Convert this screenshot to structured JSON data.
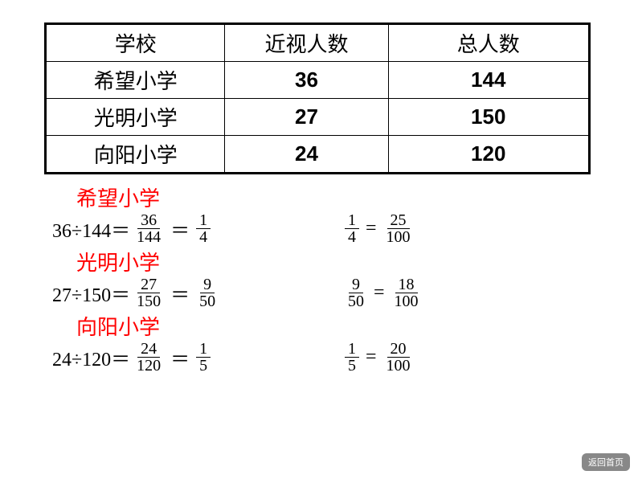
{
  "table": {
    "headers": [
      "学校",
      "近视人数",
      "总人数"
    ],
    "rows": [
      [
        "希望小学",
        "36",
        "144"
      ],
      [
        "光明小学",
        "27",
        "150"
      ],
      [
        "向阳小学",
        "24",
        "120"
      ]
    ]
  },
  "calcs": [
    {
      "title": "希望小学",
      "lhs": "36÷144＝",
      "f1": {
        "n": "36",
        "d": "144"
      },
      "eq1": "＝",
      "f2": {
        "n": "1",
        "d": "4"
      },
      "rf1": {
        "n": "1",
        "d": "4"
      },
      "req": "=",
      "rf2": {
        "n": "25",
        "d": "100"
      }
    },
    {
      "title": "光明小学",
      "lhs": "27÷150＝",
      "f1": {
        "n": "27",
        "d": "150"
      },
      "eq1": "＝",
      "f2": {
        "n": "9",
        "d": "50"
      },
      "rf1": {
        "n": "9",
        "d": "50"
      },
      "req": "=",
      "rf2": {
        "n": "18",
        "d": "100"
      }
    },
    {
      "title": "向阳小学",
      "lhs": "24÷120＝",
      "f1": {
        "n": "24",
        "d": "120"
      },
      "eq1": "＝",
      "f2": {
        "n": "1",
        "d": "5"
      },
      "rf1": {
        "n": "1",
        "d": "5"
      },
      "req": "=",
      "rf2": {
        "n": "20",
        "d": "100"
      }
    }
  ],
  "returnLabel": "返回首页",
  "style": {
    "title_color": "#ff0000",
    "border_color": "#000000",
    "bg": "#ffffff",
    "table_font_size": 26,
    "calc_font_size": 24,
    "frac_font_size": 20
  }
}
